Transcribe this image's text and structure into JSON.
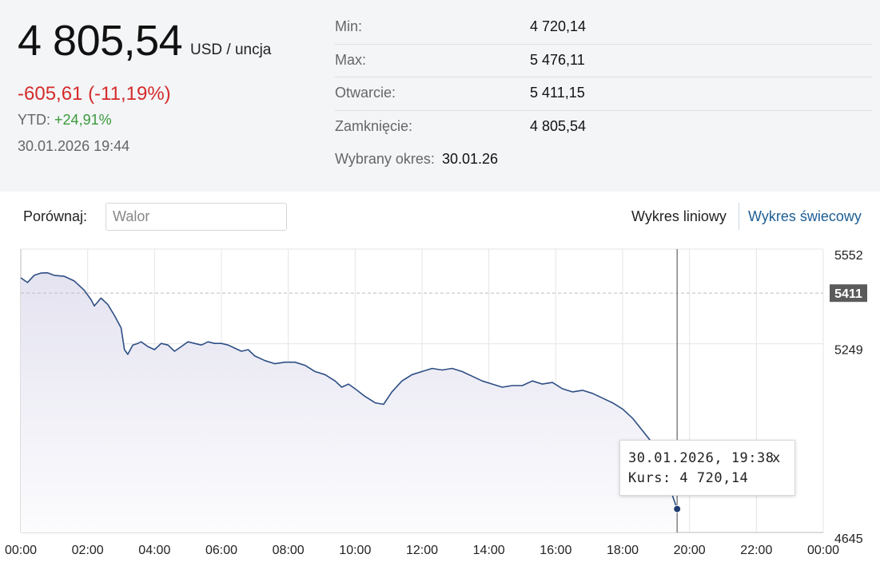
{
  "quote": {
    "price": "4 805,54",
    "unit": "USD / uncja",
    "change": "-605,61 (-11,19%)",
    "ytd_label": "YTD:",
    "ytd_value": "+24,91%",
    "timestamp": "30.01.2026 19:44"
  },
  "stats": [
    {
      "label": "Min:",
      "value": "4 720,14"
    },
    {
      "label": "Max:",
      "value": "5 476,11"
    },
    {
      "label": "Otwarcie:",
      "value": "5 411,15"
    },
    {
      "label": "Zamknięcie:",
      "value": "4 805,54"
    }
  ],
  "period": {
    "label": "Wybrany okres:",
    "value": "30.01.26"
  },
  "compare": {
    "label": "Porównaj:",
    "placeholder": "Walor"
  },
  "chart_types": {
    "line": "Wykres liniowy",
    "candle": "Wykres świecowy"
  },
  "colors": {
    "line": "#2d4e84",
    "area_top": "#e4e3f0",
    "area_bottom": "#fcfcfe",
    "negative": "#d52b2b",
    "positive": "#3a9a3a",
    "active_tab": "#1d5e95",
    "open_label_bg": "#5b5b5b"
  },
  "tooltip": {
    "date": "30.01.2026, 19:38",
    "close": "x",
    "rate": "Kurs: 4 720,14"
  },
  "chart_data": {
    "type": "area",
    "title": "",
    "xlabel": "",
    "ylabel": "",
    "x_ticks": [
      "00:00",
      "02:00",
      "04:00",
      "06:00",
      "08:00",
      "10:00",
      "12:00",
      "14:00",
      "16:00",
      "18:00",
      "20:00",
      "22:00",
      "00:00"
    ],
    "y_ticks": [
      5552,
      5249,
      4645
    ],
    "y_range": [
      4645,
      5552
    ],
    "open_reference": 5411,
    "open_label": "5411",
    "grid": true,
    "series": [
      {
        "x_hours": [
          0,
          0.2,
          0.4,
          0.6,
          0.8,
          1.0,
          1.3,
          1.6,
          1.9,
          2.1,
          2.2,
          2.4,
          2.6,
          2.8,
          3.0,
          3.1,
          3.2,
          3.35,
          3.5,
          3.6,
          3.8,
          4.0,
          4.2,
          4.4,
          4.6,
          4.8,
          5.0,
          5.2,
          5.4,
          5.6,
          5.8,
          6.0,
          6.2,
          6.4,
          6.6,
          6.8,
          7.0,
          7.3,
          7.6,
          7.9,
          8.2,
          8.5,
          8.8,
          9.1,
          9.4,
          9.6,
          9.8,
          10.0,
          10.3,
          10.6,
          10.85,
          11.1,
          11.4,
          11.7,
          12.0,
          12.3,
          12.6,
          12.9,
          13.2,
          13.5,
          13.8,
          14.1,
          14.4,
          14.7,
          15.0,
          15.3,
          15.6,
          15.9,
          16.2,
          16.5,
          16.8,
          17.1,
          17.4,
          17.7,
          18.0,
          18.3,
          18.6,
          18.9,
          19.2,
          19.45,
          19.63
        ],
        "y": [
          5460,
          5445,
          5468,
          5475,
          5476,
          5468,
          5465,
          5450,
          5420,
          5390,
          5370,
          5395,
          5375,
          5340,
          5300,
          5230,
          5215,
          5245,
          5250,
          5255,
          5240,
          5230,
          5250,
          5245,
          5225,
          5240,
          5255,
          5250,
          5245,
          5255,
          5250,
          5250,
          5245,
          5235,
          5225,
          5230,
          5210,
          5195,
          5185,
          5190,
          5190,
          5180,
          5160,
          5150,
          5130,
          5110,
          5120,
          5105,
          5080,
          5060,
          5055,
          5095,
          5130,
          5150,
          5160,
          5170,
          5165,
          5170,
          5160,
          5145,
          5130,
          5120,
          5110,
          5115,
          5115,
          5130,
          5120,
          5125,
          5105,
          5095,
          5100,
          5090,
          5075,
          5060,
          5040,
          5010,
          4970,
          4930,
          4830,
          4775,
          4720
        ]
      }
    ],
    "marker": {
      "x_hours": 19.63,
      "y": 4720.14
    }
  }
}
